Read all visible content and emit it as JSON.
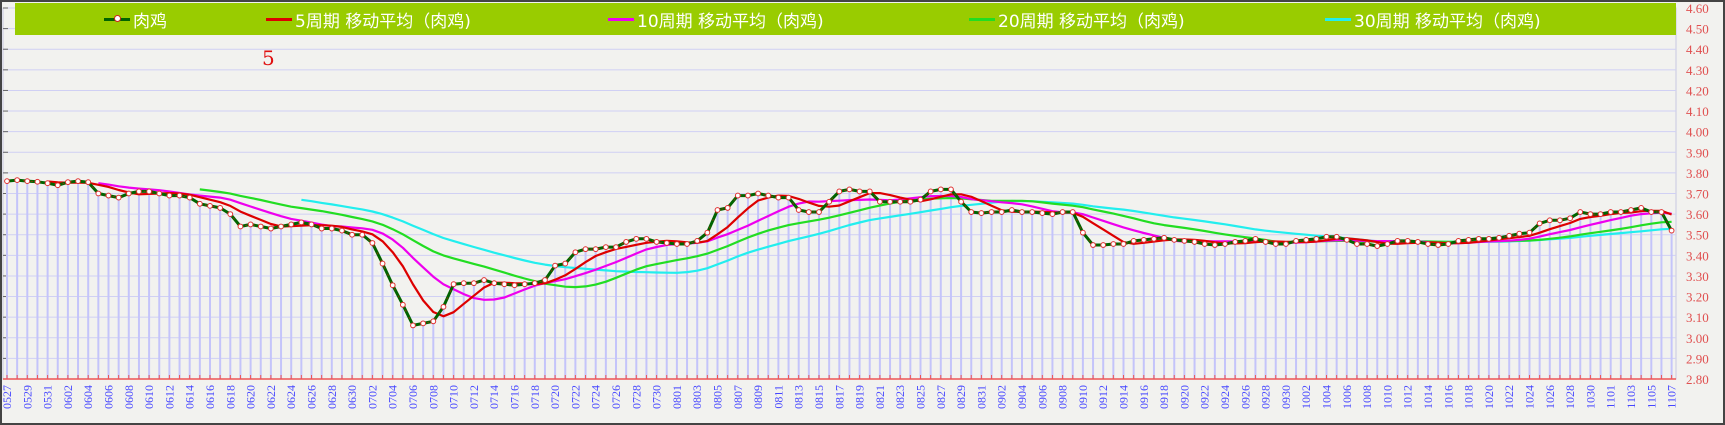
{
  "legend": [
    {
      "label": "肉鸡",
      "color": "#006400",
      "marker": true
    },
    {
      "label": "5周期 移动平均（肉鸡)",
      "color": "#dd0000"
    },
    {
      "label": "10周期 移动平均（肉鸡)",
      "color": "#ee00ee"
    },
    {
      "label": "20周期 移动平均（肉鸡)",
      "color": "#22dd22"
    },
    {
      "label": "30周期 移动平均（肉鸡)",
      "color": "#22eeee"
    }
  ],
  "annotation": "5",
  "chart_data": {
    "type": "line",
    "title": "",
    "series_name": "肉鸡",
    "ma_periods": [
      5,
      10,
      20,
      30
    ],
    "ylim": [
      2.8,
      4.6
    ],
    "ytick_step": 0.1,
    "yticks": [
      "4.60",
      "4.50",
      "4.40",
      "4.30",
      "4.20",
      "4.10",
      "4.00",
      "3.90",
      "3.80",
      "3.70",
      "3.60",
      "3.50",
      "3.40",
      "3.30",
      "3.20",
      "3.10",
      "3.00",
      "2.90",
      "2.80"
    ],
    "y_axis_position": "right",
    "grid": true,
    "legend_placement": "top",
    "xtick_labels": [
      "0527",
      "0529",
      "0531",
      "0602",
      "0604",
      "0606",
      "0608",
      "0610",
      "0612",
      "0614",
      "0616",
      "0618",
      "0620",
      "0622",
      "0624",
      "0626",
      "0628",
      "0630",
      "0702",
      "0704",
      "0706",
      "0708",
      "0710",
      "0712",
      "0714",
      "0716",
      "0718",
      "0720",
      "0722",
      "0724",
      "0726",
      "0728",
      "0730",
      "0801",
      "0803",
      "0805",
      "0807",
      "0809",
      "0811",
      "0813",
      "0815",
      "0817",
      "0819",
      "0821",
      "0823",
      "0825",
      "0827",
      "0829",
      "0831",
      "0902",
      "0904",
      "0906",
      "0908",
      "0910",
      "0912",
      "0914",
      "0916",
      "0918",
      "0920",
      "0922",
      "0924",
      "0926",
      "0928",
      "0930",
      "1002",
      "1004",
      "1006",
      "1008",
      "1010",
      "1012",
      "1014",
      "1016",
      "1018",
      "1020",
      "1022",
      "1024",
      "1026",
      "1028",
      "1030",
      "1101",
      "1103",
      "1105",
      "1107"
    ],
    "values": [
      3.76,
      3.765,
      3.76,
      3.757,
      3.75,
      3.74,
      3.755,
      3.76,
      3.755,
      3.7,
      3.69,
      3.68,
      3.7,
      3.71,
      3.71,
      3.7,
      3.69,
      3.69,
      3.68,
      3.65,
      3.64,
      3.63,
      3.6,
      3.54,
      3.55,
      3.54,
      3.53,
      3.54,
      3.55,
      3.56,
      3.55,
      3.53,
      3.53,
      3.52,
      3.5,
      3.5,
      3.46,
      3.36,
      3.255,
      3.16,
      3.06,
      3.07,
      3.08,
      3.15,
      3.26,
      3.265,
      3.265,
      3.28,
      3.265,
      3.26,
      3.255,
      3.26,
      3.265,
      3.28,
      3.35,
      3.36,
      3.415,
      3.43,
      3.43,
      3.44,
      3.44,
      3.465,
      3.48,
      3.48,
      3.465,
      3.46,
      3.455,
      3.455,
      3.47,
      3.51,
      3.62,
      3.63,
      3.69,
      3.69,
      3.7,
      3.69,
      3.68,
      3.68,
      3.62,
      3.61,
      3.61,
      3.66,
      3.71,
      3.72,
      3.71,
      3.71,
      3.66,
      3.66,
      3.66,
      3.66,
      3.67,
      3.71,
      3.72,
      3.72,
      3.66,
      3.61,
      3.605,
      3.61,
      3.61,
      3.62,
      3.61,
      3.61,
      3.605,
      3.6,
      3.61,
      3.61,
      3.51,
      3.45,
      3.45,
      3.455,
      3.455,
      3.47,
      3.475,
      3.48,
      3.485,
      3.475,
      3.47,
      3.465,
      3.455,
      3.45,
      3.455,
      3.465,
      3.47,
      3.48,
      3.465,
      3.455,
      3.455,
      3.47,
      3.475,
      3.48,
      3.49,
      3.49,
      3.475,
      3.455,
      3.455,
      3.445,
      3.455,
      3.47,
      3.47,
      3.465,
      3.455,
      3.45,
      3.455,
      3.47,
      3.475,
      3.48,
      3.48,
      3.485,
      3.495,
      3.505,
      3.51,
      3.555,
      3.57,
      3.57,
      3.58,
      3.61,
      3.6,
      3.6,
      3.61,
      3.61,
      3.62,
      3.63,
      3.61,
      3.61,
      3.52
    ]
  }
}
